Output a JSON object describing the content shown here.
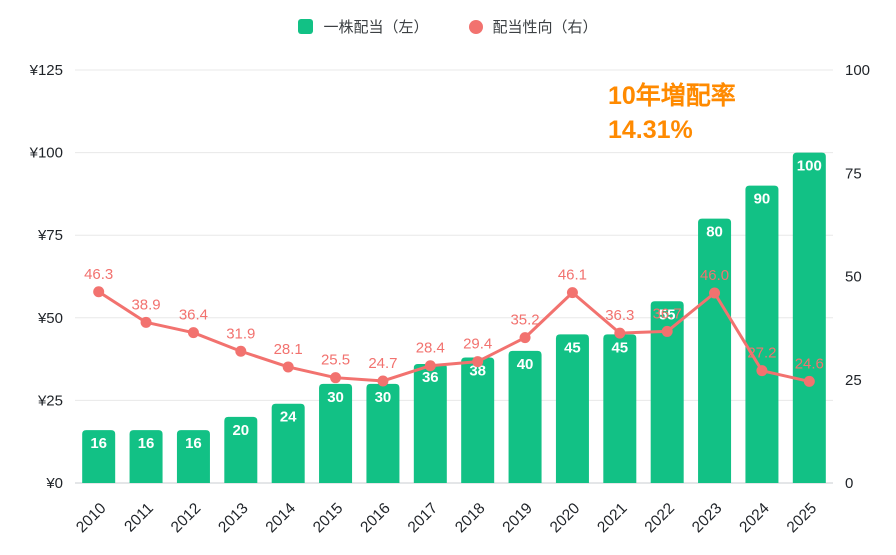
{
  "chart_data": {
    "type": "bar+line",
    "categories": [
      "2010",
      "2011",
      "2012",
      "2013",
      "2014",
      "2015",
      "2016",
      "2017",
      "2018",
      "2019",
      "2020",
      "2021",
      "2022",
      "2023",
      "2024",
      "2025"
    ],
    "series": [
      {
        "name": "一株配当（左）",
        "type": "bar",
        "axis": "left",
        "color": "#12C185",
        "values": [
          16,
          16,
          16,
          20,
          24,
          30,
          30,
          36,
          38,
          40,
          45,
          45,
          55,
          80,
          90,
          100
        ]
      },
      {
        "name": "配当性向（右）",
        "type": "line",
        "axis": "right",
        "color": "#F2726F",
        "values": [
          46.3,
          38.9,
          36.4,
          31.9,
          28.1,
          25.5,
          24.7,
          28.4,
          29.4,
          35.2,
          46.1,
          36.3,
          36.7,
          46.0,
          27.2,
          24.6
        ]
      }
    ],
    "left_axis": {
      "tick_labels": [
        "¥0",
        "¥25",
        "¥50",
        "¥75",
        "¥100",
        "¥125"
      ],
      "tick_values": [
        0,
        25,
        50,
        75,
        100,
        125
      ],
      "min": 0,
      "max": 125
    },
    "right_axis": {
      "tick_labels": [
        "0",
        "25",
        "50",
        "75",
        "100"
      ],
      "tick_values": [
        0,
        25,
        50,
        75,
        100
      ],
      "min": 0,
      "max": 100
    },
    "grid": true,
    "legend_position": "top",
    "annotation": {
      "line1": "10年増配率",
      "line2": "14.31%",
      "color": "#FF8A00"
    }
  }
}
